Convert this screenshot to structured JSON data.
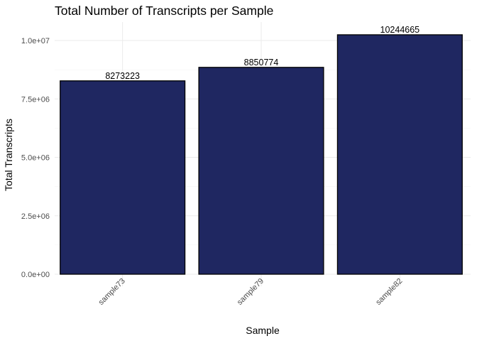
{
  "chart_data": {
    "type": "bar",
    "title": "Total Number of Transcripts per Sample",
    "xlabel": "Sample",
    "ylabel": "Total Transcripts",
    "categories": [
      "sample73",
      "sample79",
      "sample82"
    ],
    "values": [
      8273223,
      8850774,
      10244665
    ],
    "data_labels": [
      "8273223",
      "8850774",
      "10244665"
    ],
    "ylim": [
      0,
      10700000
    ],
    "yticks": [
      0,
      2500000,
      5000000,
      7500000,
      10000000
    ],
    "ytick_labels": [
      "0.0e+00",
      "2.5e+06",
      "5.0e+06",
      "7.5e+06",
      "1.0e+07"
    ],
    "grid": true,
    "legend": "none",
    "colors": {
      "bar_fill": "#1f2761",
      "bar_stroke": "#000000"
    }
  }
}
